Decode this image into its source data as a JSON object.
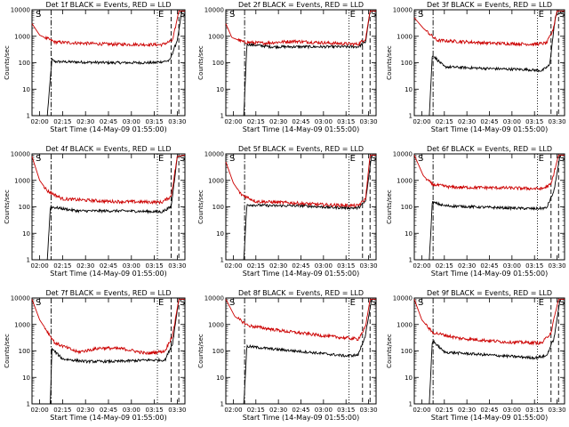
{
  "chart_data": [
    {
      "type": "line",
      "title": "Det 1f BLACK = Events, RED = LLD",
      "xlabel": "Start Time (14-May-09 01:55:00)",
      "ylabel": "Counts/sec",
      "yscale": "log",
      "ylim": [
        1,
        10000
      ],
      "xlim": [
        "01:55",
        "03:35"
      ],
      "x_ticks": [
        "02:00",
        "02:15",
        "02:30",
        "02:45",
        "03:00",
        "03:15",
        "03:30"
      ],
      "y_ticks": [
        "1",
        "10",
        "100",
        "1000",
        "10000"
      ],
      "markers": [
        "S",
        "E",
        "S"
      ],
      "series": [
        {
          "color": "#000000",
          "shape": [
            [
              0,
              0
            ],
            [
              10,
              0
            ],
            [
              13,
              130
            ],
            [
              15,
              110
            ],
            [
              50,
              100
            ],
            [
              80,
              100
            ],
            [
              90,
              120
            ],
            [
              95,
              700
            ],
            [
              98,
              9000
            ],
            [
              100,
              9000
            ]
          ]
        },
        {
          "color": "#cc0000",
          "shape": [
            [
              0,
              3000
            ],
            [
              5,
              1100
            ],
            [
              15,
              600
            ],
            [
              50,
              500
            ],
            [
              85,
              480
            ],
            [
              92,
              700
            ],
            [
              96,
              9000
            ],
            [
              100,
              9000
            ]
          ]
        }
      ]
    },
    {
      "type": "line",
      "title": "Det 2f BLACK = Events, RED = LLD",
      "xlabel": "Start Time (14-May-09 01:55:00)",
      "ylabel": "Counts/sec",
      "yscale": "log",
      "ylim": [
        1,
        10000
      ],
      "xlim": [
        "01:55",
        "03:35"
      ],
      "x_ticks": [
        "02:00",
        "02:15",
        "02:30",
        "02:45",
        "03:00",
        "03:15",
        "03:30"
      ],
      "y_ticks": [
        "1",
        "10",
        "100",
        "1000",
        "10000"
      ],
      "markers": [
        "S",
        "E",
        "S"
      ],
      "series": [
        {
          "color": "#000000",
          "shape": [
            [
              0,
              0
            ],
            [
              12,
              0
            ],
            [
              14,
              500
            ],
            [
              30,
              400
            ],
            [
              60,
              400
            ],
            [
              88,
              400
            ],
            [
              93,
              600
            ],
            [
              96,
              9000
            ],
            [
              100,
              9000
            ]
          ]
        },
        {
          "color": "#cc0000",
          "shape": [
            [
              0,
              3000
            ],
            [
              4,
              900
            ],
            [
              12,
              600
            ],
            [
              25,
              550
            ],
            [
              45,
              650
            ],
            [
              70,
              550
            ],
            [
              88,
              500
            ],
            [
              93,
              800
            ],
            [
              96,
              9000
            ],
            [
              100,
              9000
            ]
          ]
        }
      ]
    },
    {
      "type": "line",
      "title": "Det 3f BLACK = Events, RED = LLD",
      "xlabel": "Start Time (14-May-09 01:55:00)",
      "ylabel": "Counts/sec",
      "yscale": "log",
      "ylim": [
        1,
        10000
      ],
      "xlim": [
        "01:55",
        "03:35"
      ],
      "x_ticks": [
        "02:00",
        "02:15",
        "02:30",
        "02:45",
        "03:00",
        "03:15",
        "03:30"
      ],
      "y_ticks": [
        "1",
        "10",
        "100",
        "1000",
        "10000"
      ],
      "markers": [
        "S",
        "E",
        "S"
      ],
      "series": [
        {
          "color": "#000000",
          "shape": [
            [
              0,
              0
            ],
            [
              10,
              0
            ],
            [
              12,
              200
            ],
            [
              20,
              70
            ],
            [
              50,
              60
            ],
            [
              75,
              55
            ],
            [
              85,
              50
            ],
            [
              90,
              80
            ],
            [
              94,
              6000
            ],
            [
              100,
              9000
            ]
          ]
        },
        {
          "color": "#cc0000",
          "shape": [
            [
              0,
              5000
            ],
            [
              6,
              2000
            ],
            [
              15,
              700
            ],
            [
              50,
              550
            ],
            [
              80,
              500
            ],
            [
              88,
              550
            ],
            [
              92,
              1500
            ],
            [
              95,
              9000
            ],
            [
              100,
              9000
            ]
          ]
        }
      ]
    },
    {
      "type": "line",
      "title": "Det 4f BLACK = Events, RED = LLD",
      "xlabel": "Start Time (14-May-09 01:55:00)",
      "ylabel": "Counts/sec",
      "yscale": "log",
      "ylim": [
        1,
        10000
      ],
      "xlim": [
        "01:55",
        "03:35"
      ],
      "x_ticks": [
        "02:00",
        "02:15",
        "02:30",
        "02:45",
        "03:00",
        "03:15",
        "03:30"
      ],
      "y_ticks": [
        "1",
        "10",
        "100",
        "1000",
        "10000"
      ],
      "markers": [
        "S",
        "E",
        "S"
      ],
      "series": [
        {
          "color": "#000000",
          "shape": [
            [
              0,
              0
            ],
            [
              10,
              0
            ],
            [
              12,
              100
            ],
            [
              30,
              70
            ],
            [
              60,
              70
            ],
            [
              85,
              65
            ],
            [
              91,
              100
            ],
            [
              95,
              8000
            ],
            [
              100,
              9000
            ]
          ]
        },
        {
          "color": "#cc0000",
          "shape": [
            [
              0,
              8000
            ],
            [
              5,
              1000
            ],
            [
              10,
              400
            ],
            [
              20,
              200
            ],
            [
              50,
              160
            ],
            [
              85,
              150
            ],
            [
              91,
              250
            ],
            [
              95,
              8000
            ],
            [
              100,
              9000
            ]
          ]
        }
      ]
    },
    {
      "type": "line",
      "title": "Det 5f BLACK = Events, RED = LLD",
      "xlabel": "Start Time (14-May-09 01:55:00)",
      "ylabel": "Counts/sec",
      "yscale": "log",
      "ylim": [
        1,
        10000
      ],
      "xlim": [
        "01:55",
        "03:35"
      ],
      "x_ticks": [
        "02:00",
        "02:15",
        "02:30",
        "02:45",
        "03:00",
        "03:15",
        "03:30"
      ],
      "y_ticks": [
        "1",
        "10",
        "100",
        "1000",
        "10000"
      ],
      "markers": [
        "S",
        "E",
        "S"
      ],
      "series": [
        {
          "color": "#000000",
          "shape": [
            [
              0,
              0
            ],
            [
              12,
              0
            ],
            [
              14,
              120
            ],
            [
              30,
              110
            ],
            [
              50,
              110
            ],
            [
              70,
              95
            ],
            [
              88,
              90
            ],
            [
              93,
              160
            ],
            [
              97,
              9000
            ],
            [
              100,
              9000
            ]
          ]
        },
        {
          "color": "#cc0000",
          "shape": [
            [
              0,
              5000
            ],
            [
              5,
              800
            ],
            [
              10,
              300
            ],
            [
              20,
              160
            ],
            [
              45,
              140
            ],
            [
              65,
              120
            ],
            [
              88,
              110
            ],
            [
              93,
              200
            ],
            [
              96,
              9000
            ],
            [
              100,
              9000
            ]
          ]
        }
      ]
    },
    {
      "type": "line",
      "title": "Det 6f BLACK = Events, RED = LLD",
      "xlabel": "Start Time (14-May-09 01:55:00)",
      "ylabel": "Counts/sec",
      "yscale": "log",
      "ylim": [
        1,
        10000
      ],
      "xlim": [
        "01:55",
        "03:35"
      ],
      "x_ticks": [
        "02:00",
        "02:15",
        "02:30",
        "02:45",
        "03:00",
        "03:15",
        "03:30"
      ],
      "y_ticks": [
        "1",
        "10",
        "100",
        "1000",
        "10000"
      ],
      "markers": [
        "S",
        "E",
        "S"
      ],
      "series": [
        {
          "color": "#000000",
          "shape": [
            [
              0,
              0
            ],
            [
              10,
              0
            ],
            [
              12,
              150
            ],
            [
              20,
              110
            ],
            [
              50,
              95
            ],
            [
              80,
              85
            ],
            [
              88,
              90
            ],
            [
              93,
              400
            ],
            [
              97,
              9000
            ],
            [
              100,
              9000
            ]
          ]
        },
        {
          "color": "#cc0000",
          "shape": [
            [
              0,
              9000
            ],
            [
              6,
              1500
            ],
            [
              12,
              700
            ],
            [
              25,
              550
            ],
            [
              60,
              520
            ],
            [
              85,
              480
            ],
            [
              91,
              700
            ],
            [
              96,
              9000
            ],
            [
              100,
              9000
            ]
          ]
        }
      ]
    },
    {
      "type": "line",
      "title": "Det 7f BLACK = Events, RED = LLD",
      "xlabel": "Start Time (14-May-09 01:55:00)",
      "ylabel": "Counts/sec",
      "yscale": "log",
      "ylim": [
        1,
        10000
      ],
      "xlim": [
        "01:55",
        "03:35"
      ],
      "x_ticks": [
        "02:00",
        "02:15",
        "02:30",
        "02:45",
        "03:00",
        "03:15",
        "03:30"
      ],
      "y_ticks": [
        "1",
        "10",
        "100",
        "1000",
        "10000"
      ],
      "markers": [
        "S",
        "E",
        "S"
      ],
      "series": [
        {
          "color": "#000000",
          "shape": [
            [
              0,
              0
            ],
            [
              12,
              0
            ],
            [
              13,
              120
            ],
            [
              20,
              50
            ],
            [
              35,
              40
            ],
            [
              55,
              40
            ],
            [
              75,
              45
            ],
            [
              87,
              45
            ],
            [
              92,
              200
            ],
            [
              96,
              9000
            ],
            [
              100,
              9000
            ]
          ]
        },
        {
          "color": "#cc0000",
          "shape": [
            [
              0,
              9000
            ],
            [
              5,
              1500
            ],
            [
              15,
              200
            ],
            [
              30,
              90
            ],
            [
              45,
              130
            ],
            [
              60,
              120
            ],
            [
              75,
              80
            ],
            [
              87,
              100
            ],
            [
              92,
              400
            ],
            [
              96,
              9000
            ],
            [
              100,
              9000
            ]
          ]
        }
      ]
    },
    {
      "type": "line",
      "title": "Det 8f BLACK = Events, RED = LLD",
      "xlabel": "Start Time (14-May-09 01:55:00)",
      "ylabel": "Counts/sec",
      "yscale": "log",
      "ylim": [
        1,
        10000
      ],
      "xlim": [
        "01:55",
        "03:35"
      ],
      "x_ticks": [
        "02:00",
        "02:15",
        "02:30",
        "02:45",
        "03:00",
        "03:15",
        "03:30"
      ],
      "y_ticks": [
        "1",
        "10",
        "100",
        "1000",
        "10000"
      ],
      "markers": [
        "S",
        "E",
        "S"
      ],
      "series": [
        {
          "color": "#000000",
          "shape": [
            [
              0,
              0
            ],
            [
              12,
              0
            ],
            [
              14,
              150
            ],
            [
              30,
              120
            ],
            [
              55,
              90
            ],
            [
              80,
              65
            ],
            [
              88,
              70
            ],
            [
              93,
              400
            ],
            [
              97,
              9000
            ],
            [
              100,
              9000
            ]
          ]
        },
        {
          "color": "#cc0000",
          "shape": [
            [
              0,
              9000
            ],
            [
              6,
              2000
            ],
            [
              15,
              900
            ],
            [
              40,
              550
            ],
            [
              70,
              350
            ],
            [
              88,
              280
            ],
            [
              93,
              800
            ],
            [
              96,
              9000
            ],
            [
              100,
              9000
            ]
          ]
        }
      ]
    },
    {
      "type": "line",
      "title": "Det 9f BLACK = Events, RED = LLD",
      "xlabel": "Start Time (14-May-09 01:55:00)",
      "ylabel": "Counts/sec",
      "yscale": "log",
      "ylim": [
        1,
        10000
      ],
      "xlim": [
        "01:55",
        "03:35"
      ],
      "x_ticks": [
        "02:00",
        "02:15",
        "02:30",
        "02:45",
        "03:00",
        "03:15",
        "03:30"
      ],
      "y_ticks": [
        "1",
        "10",
        "100",
        "1000",
        "10000"
      ],
      "markers": [
        "S",
        "E",
        "S"
      ],
      "series": [
        {
          "color": "#000000",
          "shape": [
            [
              0,
              0
            ],
            [
              10,
              0
            ],
            [
              12,
              250
            ],
            [
              20,
              90
            ],
            [
              50,
              70
            ],
            [
              80,
              55
            ],
            [
              88,
              65
            ],
            [
              93,
              300
            ],
            [
              97,
              9000
            ],
            [
              100,
              9000
            ]
          ]
        },
        {
          "color": "#cc0000",
          "shape": [
            [
              0,
              9000
            ],
            [
              5,
              1500
            ],
            [
              12,
              500
            ],
            [
              30,
              300
            ],
            [
              60,
              220
            ],
            [
              85,
              200
            ],
            [
              91,
              500
            ],
            [
              96,
              9000
            ],
            [
              100,
              9000
            ]
          ]
        }
      ]
    }
  ]
}
